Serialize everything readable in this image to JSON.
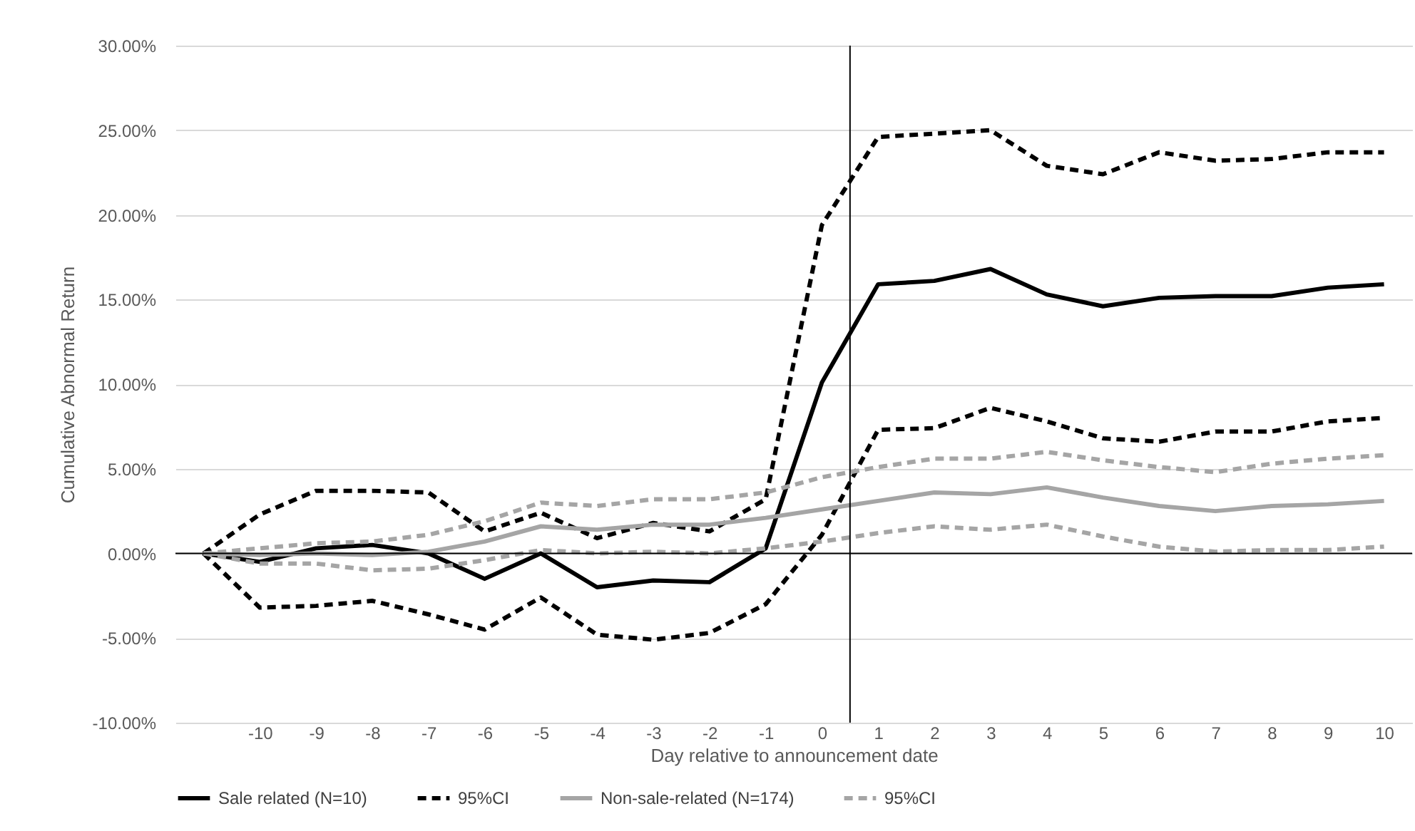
{
  "chart_data": {
    "type": "line",
    "xlabel": "Day relative to announcement date",
    "ylabel": "Cumulative Abnormal Return",
    "x": [
      -11,
      -10,
      -9,
      -8,
      -7,
      -6,
      -5,
      -4,
      -3,
      -2,
      -1,
      0,
      1,
      2,
      3,
      4,
      5,
      6,
      7,
      8,
      9,
      10
    ],
    "xlim": [
      -11.5,
      10.5
    ],
    "xticks": [
      -10,
      -9,
      -8,
      -7,
      -6,
      -5,
      -4,
      -3,
      -2,
      -1,
      0,
      1,
      2,
      3,
      4,
      5,
      6,
      7,
      8,
      9,
      10
    ],
    "ylim": [
      -0.1,
      0.3
    ],
    "yticks": [
      {
        "value": -0.1,
        "label": "-10.00%"
      },
      {
        "value": -0.05,
        "label": "-5.00%"
      },
      {
        "value": 0,
        "label": "0.00%"
      },
      {
        "value": 0.05,
        "label": "5.00%"
      },
      {
        "value": 0.1,
        "label": "10.00%"
      },
      {
        "value": 0.15,
        "label": "15.00%"
      },
      {
        "value": 0.2,
        "label": "20.00%"
      },
      {
        "value": 0.25,
        "label": "25.00%"
      },
      {
        "value": 0.3,
        "label": "30.00%"
      }
    ],
    "grid": "y",
    "legend": "bottom",
    "ref_lines": [
      {
        "axis": "x",
        "value": 0.5,
        "color": "#000000"
      },
      {
        "axis": "y",
        "value": 0,
        "color": "#000000"
      }
    ],
    "series": [
      {
        "name": "Sale related (N=10)",
        "color": "#000000",
        "line_style": "solid",
        "values": [
          0,
          -0.005,
          0.003,
          0.005,
          0.0,
          -0.015,
          0.0,
          -0.02,
          -0.016,
          -0.017,
          0.003,
          0.101,
          0.159,
          0.161,
          0.168,
          0.153,
          0.146,
          0.151,
          0.152,
          0.152,
          0.157,
          0.159
        ]
      },
      {
        "name": "95%CI",
        "color": "#000000",
        "line_style": "dashed",
        "values": [
          0,
          0.023,
          0.037,
          0.037,
          0.036,
          0.013,
          0.024,
          0.009,
          0.018,
          0.013,
          0.032,
          0.194,
          0.246,
          0.248,
          0.25,
          0.229,
          0.224,
          0.237,
          0.232,
          0.233,
          0.237,
          0.237
        ]
      },
      {
        "color": "#000000",
        "line_style": "dashed",
        "values": [
          0,
          -0.032,
          -0.031,
          -0.028,
          -0.036,
          -0.045,
          -0.026,
          -0.048,
          -0.051,
          -0.047,
          -0.03,
          0.011,
          0.073,
          0.074,
          0.086,
          0.078,
          0.068,
          0.066,
          0.072,
          0.072,
          0.078,
          0.08
        ]
      },
      {
        "name": "Non-sale-related (N=174)",
        "color": "#a5a5a5",
        "line_style": "solid",
        "values": [
          0,
          -0.001,
          0.0,
          -0.001,
          0.001,
          0.007,
          0.016,
          0.014,
          0.017,
          0.017,
          0.021,
          0.026,
          0.031,
          0.036,
          0.035,
          0.039,
          0.033,
          0.028,
          0.025,
          0.028,
          0.029,
          0.031
        ]
      },
      {
        "name": "95%CI",
        "color": "#a5a5a5",
        "line_style": "dashed",
        "values": [
          0,
          0.003,
          0.006,
          0.007,
          0.011,
          0.019,
          0.03,
          0.028,
          0.032,
          0.032,
          0.036,
          0.045,
          0.051,
          0.056,
          0.056,
          0.06,
          0.055,
          0.051,
          0.048,
          0.053,
          0.056,
          0.058
        ]
      },
      {
        "color": "#a5a5a5",
        "line_style": "dashed",
        "values": [
          0,
          -0.006,
          -0.006,
          -0.01,
          -0.009,
          -0.004,
          0.002,
          0.0,
          0.001,
          0.0,
          0.003,
          0.007,
          0.012,
          0.016,
          0.014,
          0.017,
          0.01,
          0.004,
          0.001,
          0.002,
          0.002,
          0.004
        ]
      }
    ]
  }
}
